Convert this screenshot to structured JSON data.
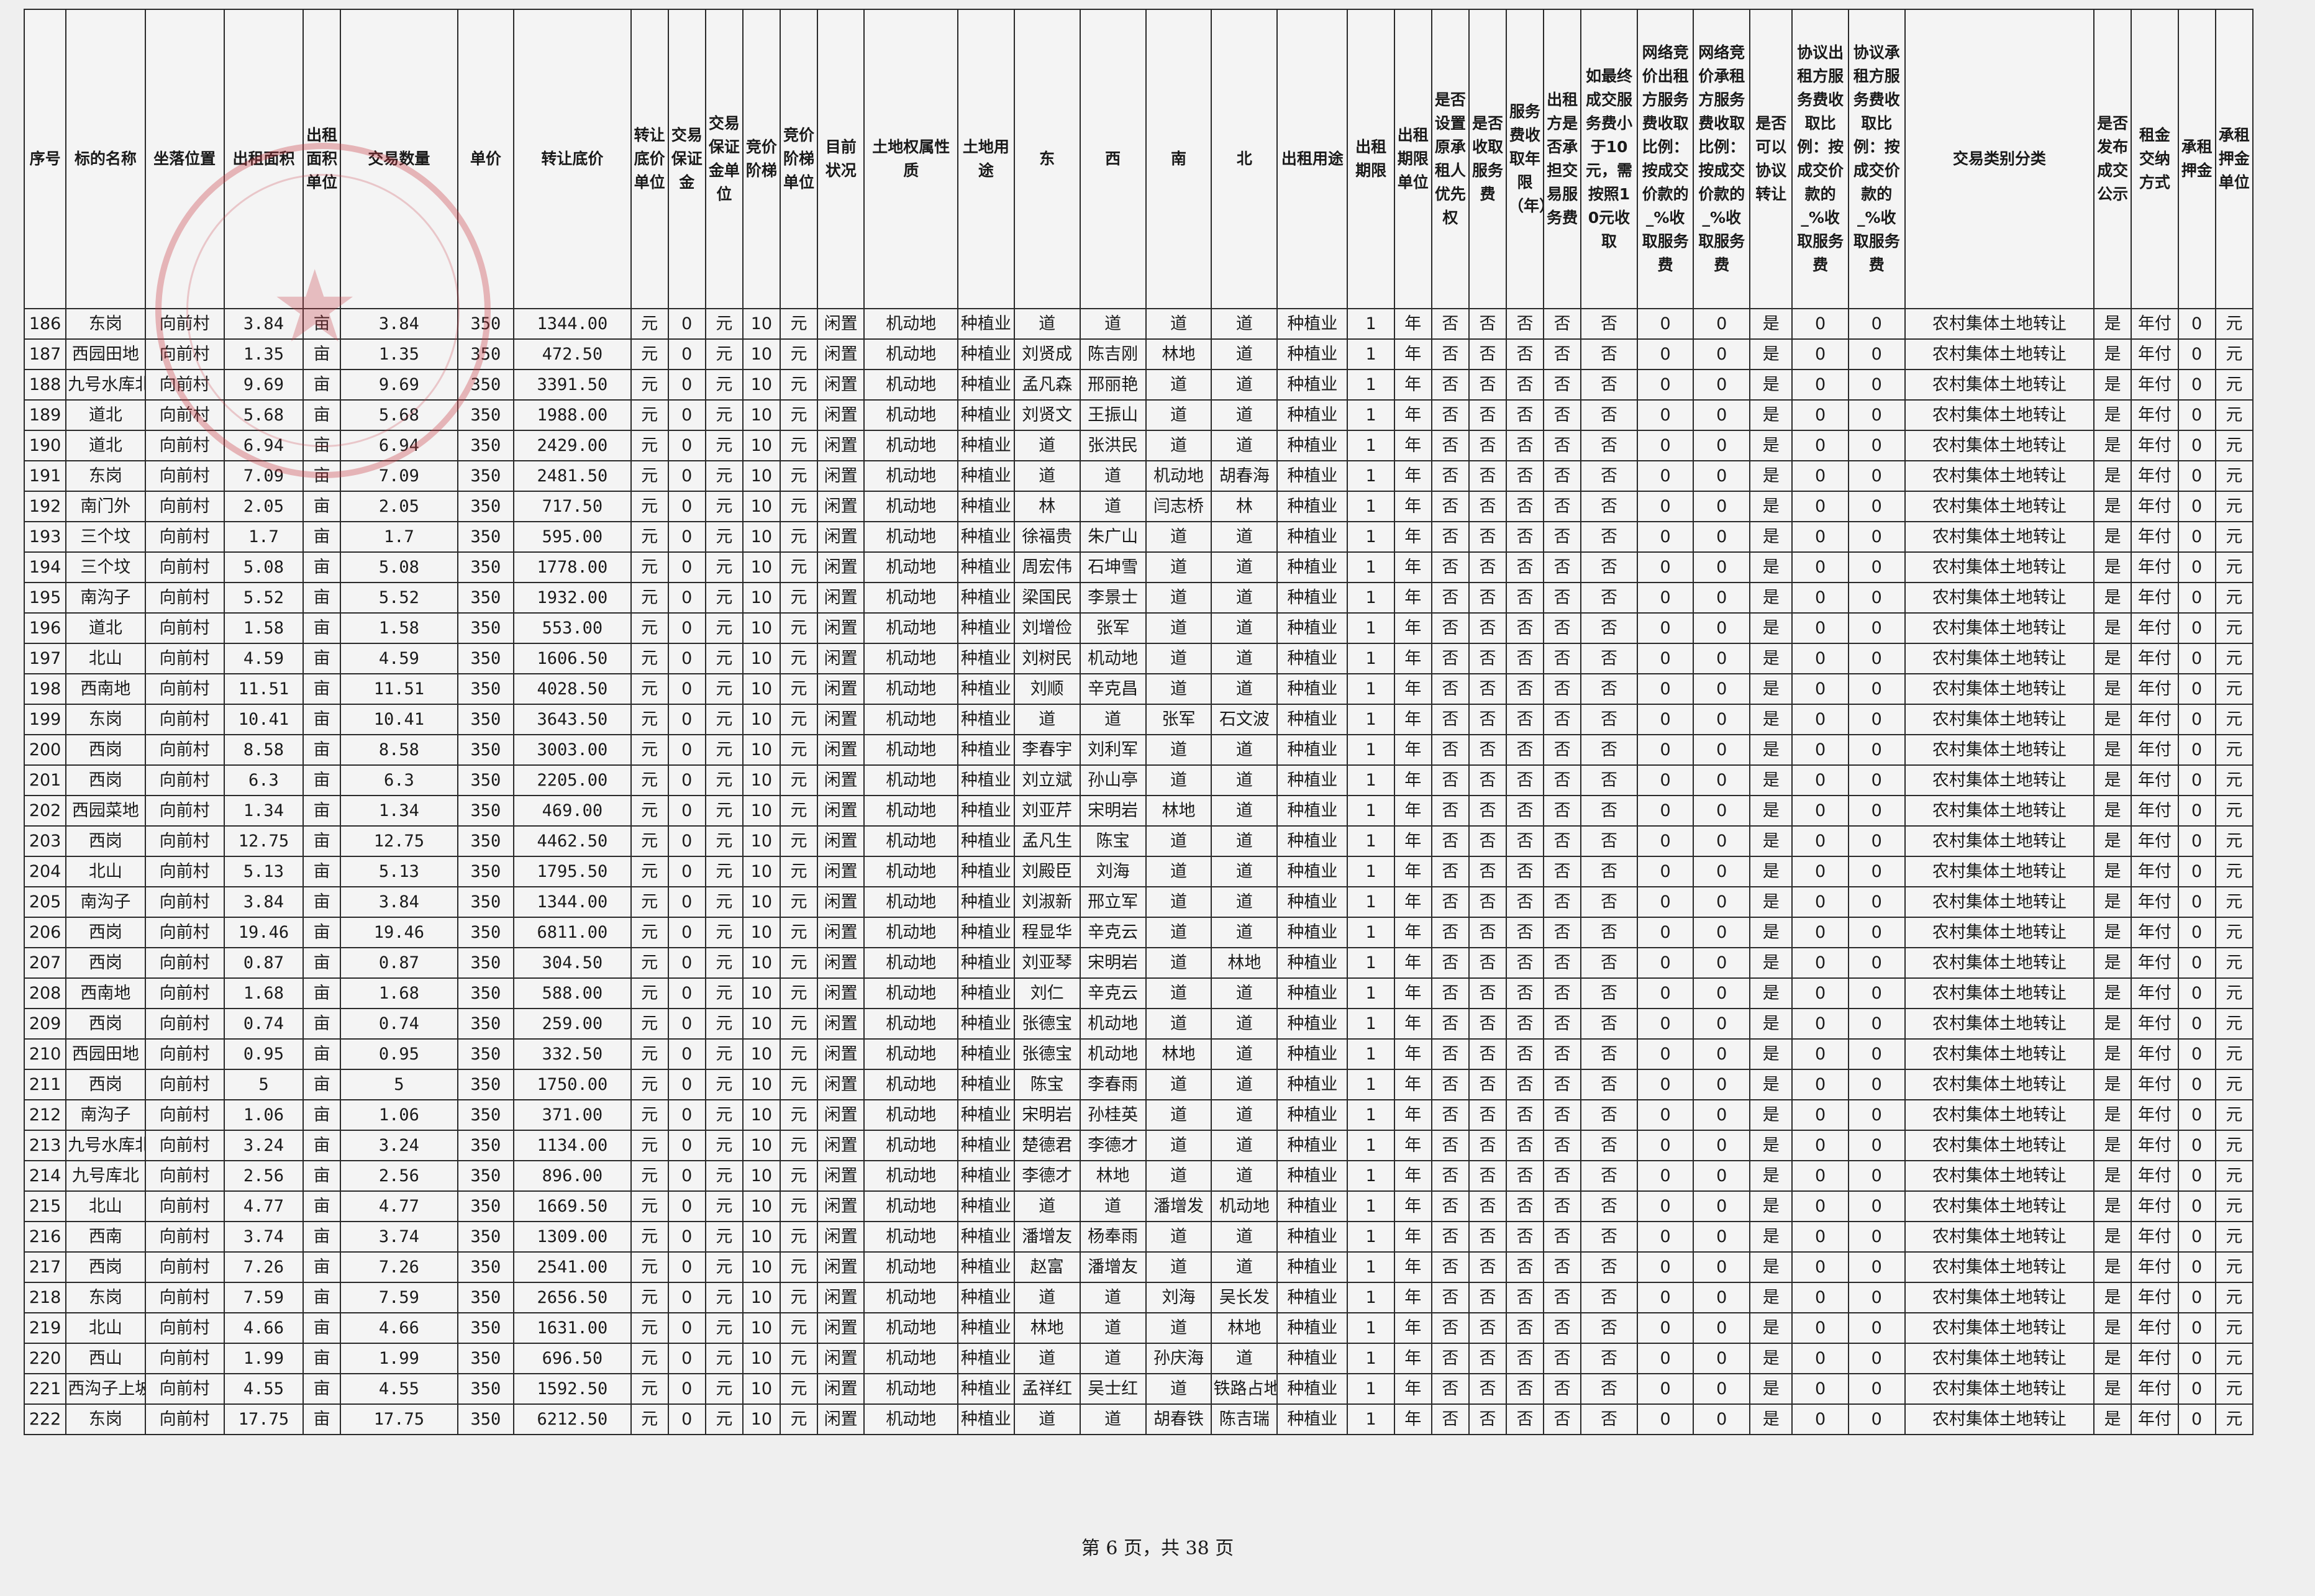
{
  "headers": [
    "序号",
    "标的名称",
    "坐落位置",
    "出租面积",
    "出租面积单位",
    "交易数量",
    "单价",
    "转让底价",
    "转让底价单位",
    "交易保证金",
    "交易保证金单位",
    "竞价阶梯",
    "竞价阶梯单位",
    "目前状况",
    "土地权属性质",
    "土地用途",
    "东",
    "西",
    "南",
    "北",
    "出租用途",
    "出租期限",
    "出租期限单位",
    "是否设置原承租人优先权",
    "是否收取服务费",
    "服务费收取年限（年）",
    "出租方是否承担交易服务费",
    "如最终成交服务费小于10元，需按照10元收取",
    "网络竞价出租方服务费收取比例：按成交价款的_%收取服务费",
    "网络竞价承租方服务费收取比例：按成交价款的_%收取服务费",
    "是否可以协议转让",
    "协议出租方服务费收取比例：按成交价款的_%收取服务费",
    "协议承租方服务费收取比例：按成交价款的_%收取服务费",
    "交易类别分类",
    "是否发布成交公示",
    "租金交纳方式",
    "承租押金",
    "承租押金单位"
  ],
  "rows": [
    [
      "186",
      "东岗",
      "向前村",
      "3.84",
      "亩",
      "3.84",
      "350",
      "1344.00",
      "元",
      "0",
      "元",
      "10",
      "元",
      "闲置",
      "机动地",
      "种植业",
      "道",
      "道",
      "道",
      "道",
      "种植业",
      "1",
      "年",
      "否",
      "否",
      "否",
      "否",
      "否",
      "0",
      "0",
      "是",
      "0",
      "0",
      "农村集体土地转让",
      "是",
      "年付",
      "0",
      "元"
    ],
    [
      "187",
      "西园田地",
      "向前村",
      "1.35",
      "亩",
      "1.35",
      "350",
      "472.50",
      "元",
      "0",
      "元",
      "10",
      "元",
      "闲置",
      "机动地",
      "种植业",
      "刘贤成",
      "陈吉刚",
      "林地",
      "道",
      "种植业",
      "1",
      "年",
      "否",
      "否",
      "否",
      "否",
      "否",
      "0",
      "0",
      "是",
      "0",
      "0",
      "农村集体土地转让",
      "是",
      "年付",
      "0",
      "元"
    ],
    [
      "188",
      "九号水库北",
      "向前村",
      "9.69",
      "亩",
      "9.69",
      "350",
      "3391.50",
      "元",
      "0",
      "元",
      "10",
      "元",
      "闲置",
      "机动地",
      "种植业",
      "孟凡森",
      "邢丽艳",
      "道",
      "道",
      "种植业",
      "1",
      "年",
      "否",
      "否",
      "否",
      "否",
      "否",
      "0",
      "0",
      "是",
      "0",
      "0",
      "农村集体土地转让",
      "是",
      "年付",
      "0",
      "元"
    ],
    [
      "189",
      "道北",
      "向前村",
      "5.68",
      "亩",
      "5.68",
      "350",
      "1988.00",
      "元",
      "0",
      "元",
      "10",
      "元",
      "闲置",
      "机动地",
      "种植业",
      "刘贤文",
      "王振山",
      "道",
      "道",
      "种植业",
      "1",
      "年",
      "否",
      "否",
      "否",
      "否",
      "否",
      "0",
      "0",
      "是",
      "0",
      "0",
      "农村集体土地转让",
      "是",
      "年付",
      "0",
      "元"
    ],
    [
      "190",
      "道北",
      "向前村",
      "6.94",
      "亩",
      "6.94",
      "350",
      "2429.00",
      "元",
      "0",
      "元",
      "10",
      "元",
      "闲置",
      "机动地",
      "种植业",
      "道",
      "张洪民",
      "道",
      "道",
      "种植业",
      "1",
      "年",
      "否",
      "否",
      "否",
      "否",
      "否",
      "0",
      "0",
      "是",
      "0",
      "0",
      "农村集体土地转让",
      "是",
      "年付",
      "0",
      "元"
    ],
    [
      "191",
      "东岗",
      "向前村",
      "7.09",
      "亩",
      "7.09",
      "350",
      "2481.50",
      "元",
      "0",
      "元",
      "10",
      "元",
      "闲置",
      "机动地",
      "种植业",
      "道",
      "道",
      "机动地",
      "胡春海",
      "种植业",
      "1",
      "年",
      "否",
      "否",
      "否",
      "否",
      "否",
      "0",
      "0",
      "是",
      "0",
      "0",
      "农村集体土地转让",
      "是",
      "年付",
      "0",
      "元"
    ],
    [
      "192",
      "南门外",
      "向前村",
      "2.05",
      "亩",
      "2.05",
      "350",
      "717.50",
      "元",
      "0",
      "元",
      "10",
      "元",
      "闲置",
      "机动地",
      "种植业",
      "林",
      "道",
      "闫志桥",
      "林",
      "种植业",
      "1",
      "年",
      "否",
      "否",
      "否",
      "否",
      "否",
      "0",
      "0",
      "是",
      "0",
      "0",
      "农村集体土地转让",
      "是",
      "年付",
      "0",
      "元"
    ],
    [
      "193",
      "三个坟",
      "向前村",
      "1.7",
      "亩",
      "1.7",
      "350",
      "595.00",
      "元",
      "0",
      "元",
      "10",
      "元",
      "闲置",
      "机动地",
      "种植业",
      "徐福贵",
      "朱广山",
      "道",
      "道",
      "种植业",
      "1",
      "年",
      "否",
      "否",
      "否",
      "否",
      "否",
      "0",
      "0",
      "是",
      "0",
      "0",
      "农村集体土地转让",
      "是",
      "年付",
      "0",
      "元"
    ],
    [
      "194",
      "三个坟",
      "向前村",
      "5.08",
      "亩",
      "5.08",
      "350",
      "1778.00",
      "元",
      "0",
      "元",
      "10",
      "元",
      "闲置",
      "机动地",
      "种植业",
      "周宏伟",
      "石坤雪",
      "道",
      "道",
      "种植业",
      "1",
      "年",
      "否",
      "否",
      "否",
      "否",
      "否",
      "0",
      "0",
      "是",
      "0",
      "0",
      "农村集体土地转让",
      "是",
      "年付",
      "0",
      "元"
    ],
    [
      "195",
      "南沟子",
      "向前村",
      "5.52",
      "亩",
      "5.52",
      "350",
      "1932.00",
      "元",
      "0",
      "元",
      "10",
      "元",
      "闲置",
      "机动地",
      "种植业",
      "梁国民",
      "李景士",
      "道",
      "道",
      "种植业",
      "1",
      "年",
      "否",
      "否",
      "否",
      "否",
      "否",
      "0",
      "0",
      "是",
      "0",
      "0",
      "农村集体土地转让",
      "是",
      "年付",
      "0",
      "元"
    ],
    [
      "196",
      "道北",
      "向前村",
      "1.58",
      "亩",
      "1.58",
      "350",
      "553.00",
      "元",
      "0",
      "元",
      "10",
      "元",
      "闲置",
      "机动地",
      "种植业",
      "刘增俭",
      "张军",
      "道",
      "道",
      "种植业",
      "1",
      "年",
      "否",
      "否",
      "否",
      "否",
      "否",
      "0",
      "0",
      "是",
      "0",
      "0",
      "农村集体土地转让",
      "是",
      "年付",
      "0",
      "元"
    ],
    [
      "197",
      "北山",
      "向前村",
      "4.59",
      "亩",
      "4.59",
      "350",
      "1606.50",
      "元",
      "0",
      "元",
      "10",
      "元",
      "闲置",
      "机动地",
      "种植业",
      "刘树民",
      "机动地",
      "道",
      "道",
      "种植业",
      "1",
      "年",
      "否",
      "否",
      "否",
      "否",
      "否",
      "0",
      "0",
      "是",
      "0",
      "0",
      "农村集体土地转让",
      "是",
      "年付",
      "0",
      "元"
    ],
    [
      "198",
      "西南地",
      "向前村",
      "11.51",
      "亩",
      "11.51",
      "350",
      "4028.50",
      "元",
      "0",
      "元",
      "10",
      "元",
      "闲置",
      "机动地",
      "种植业",
      "刘顺",
      "辛克昌",
      "道",
      "道",
      "种植业",
      "1",
      "年",
      "否",
      "否",
      "否",
      "否",
      "否",
      "0",
      "0",
      "是",
      "0",
      "0",
      "农村集体土地转让",
      "是",
      "年付",
      "0",
      "元"
    ],
    [
      "199",
      "东岗",
      "向前村",
      "10.41",
      "亩",
      "10.41",
      "350",
      "3643.50",
      "元",
      "0",
      "元",
      "10",
      "元",
      "闲置",
      "机动地",
      "种植业",
      "道",
      "道",
      "张军",
      "石文波",
      "种植业",
      "1",
      "年",
      "否",
      "否",
      "否",
      "否",
      "否",
      "0",
      "0",
      "是",
      "0",
      "0",
      "农村集体土地转让",
      "是",
      "年付",
      "0",
      "元"
    ],
    [
      "200",
      "西岗",
      "向前村",
      "8.58",
      "亩",
      "8.58",
      "350",
      "3003.00",
      "元",
      "0",
      "元",
      "10",
      "元",
      "闲置",
      "机动地",
      "种植业",
      "李春宇",
      "刘利军",
      "道",
      "道",
      "种植业",
      "1",
      "年",
      "否",
      "否",
      "否",
      "否",
      "否",
      "0",
      "0",
      "是",
      "0",
      "0",
      "农村集体土地转让",
      "是",
      "年付",
      "0",
      "元"
    ],
    [
      "201",
      "西岗",
      "向前村",
      "6.3",
      "亩",
      "6.3",
      "350",
      "2205.00",
      "元",
      "0",
      "元",
      "10",
      "元",
      "闲置",
      "机动地",
      "种植业",
      "刘立斌",
      "孙山亭",
      "道",
      "道",
      "种植业",
      "1",
      "年",
      "否",
      "否",
      "否",
      "否",
      "否",
      "0",
      "0",
      "是",
      "0",
      "0",
      "农村集体土地转让",
      "是",
      "年付",
      "0",
      "元"
    ],
    [
      "202",
      "西园菜地",
      "向前村",
      "1.34",
      "亩",
      "1.34",
      "350",
      "469.00",
      "元",
      "0",
      "元",
      "10",
      "元",
      "闲置",
      "机动地",
      "种植业",
      "刘亚芹",
      "宋明岩",
      "林地",
      "道",
      "种植业",
      "1",
      "年",
      "否",
      "否",
      "否",
      "否",
      "否",
      "0",
      "0",
      "是",
      "0",
      "0",
      "农村集体土地转让",
      "是",
      "年付",
      "0",
      "元"
    ],
    [
      "203",
      "西岗",
      "向前村",
      "12.75",
      "亩",
      "12.75",
      "350",
      "4462.50",
      "元",
      "0",
      "元",
      "10",
      "元",
      "闲置",
      "机动地",
      "种植业",
      "孟凡生",
      "陈宝",
      "道",
      "道",
      "种植业",
      "1",
      "年",
      "否",
      "否",
      "否",
      "否",
      "否",
      "0",
      "0",
      "是",
      "0",
      "0",
      "农村集体土地转让",
      "是",
      "年付",
      "0",
      "元"
    ],
    [
      "204",
      "北山",
      "向前村",
      "5.13",
      "亩",
      "5.13",
      "350",
      "1795.50",
      "元",
      "0",
      "元",
      "10",
      "元",
      "闲置",
      "机动地",
      "种植业",
      "刘殿臣",
      "刘海",
      "道",
      "道",
      "种植业",
      "1",
      "年",
      "否",
      "否",
      "否",
      "否",
      "否",
      "0",
      "0",
      "是",
      "0",
      "0",
      "农村集体土地转让",
      "是",
      "年付",
      "0",
      "元"
    ],
    [
      "205",
      "南沟子",
      "向前村",
      "3.84",
      "亩",
      "3.84",
      "350",
      "1344.00",
      "元",
      "0",
      "元",
      "10",
      "元",
      "闲置",
      "机动地",
      "种植业",
      "刘淑新",
      "邢立军",
      "道",
      "道",
      "种植业",
      "1",
      "年",
      "否",
      "否",
      "否",
      "否",
      "否",
      "0",
      "0",
      "是",
      "0",
      "0",
      "农村集体土地转让",
      "是",
      "年付",
      "0",
      "元"
    ],
    [
      "206",
      "西岗",
      "向前村",
      "19.46",
      "亩",
      "19.46",
      "350",
      "6811.00",
      "元",
      "0",
      "元",
      "10",
      "元",
      "闲置",
      "机动地",
      "种植业",
      "程显华",
      "辛克云",
      "道",
      "道",
      "种植业",
      "1",
      "年",
      "否",
      "否",
      "否",
      "否",
      "否",
      "0",
      "0",
      "是",
      "0",
      "0",
      "农村集体土地转让",
      "是",
      "年付",
      "0",
      "元"
    ],
    [
      "207",
      "西岗",
      "向前村",
      "0.87",
      "亩",
      "0.87",
      "350",
      "304.50",
      "元",
      "0",
      "元",
      "10",
      "元",
      "闲置",
      "机动地",
      "种植业",
      "刘亚琴",
      "宋明岩",
      "道",
      "林地",
      "种植业",
      "1",
      "年",
      "否",
      "否",
      "否",
      "否",
      "否",
      "0",
      "0",
      "是",
      "0",
      "0",
      "农村集体土地转让",
      "是",
      "年付",
      "0",
      "元"
    ],
    [
      "208",
      "西南地",
      "向前村",
      "1.68",
      "亩",
      "1.68",
      "350",
      "588.00",
      "元",
      "0",
      "元",
      "10",
      "元",
      "闲置",
      "机动地",
      "种植业",
      "刘仁",
      "辛克云",
      "道",
      "道",
      "种植业",
      "1",
      "年",
      "否",
      "否",
      "否",
      "否",
      "否",
      "0",
      "0",
      "是",
      "0",
      "0",
      "农村集体土地转让",
      "是",
      "年付",
      "0",
      "元"
    ],
    [
      "209",
      "西岗",
      "向前村",
      "0.74",
      "亩",
      "0.74",
      "350",
      "259.00",
      "元",
      "0",
      "元",
      "10",
      "元",
      "闲置",
      "机动地",
      "种植业",
      "张德宝",
      "机动地",
      "道",
      "道",
      "种植业",
      "1",
      "年",
      "否",
      "否",
      "否",
      "否",
      "否",
      "0",
      "0",
      "是",
      "0",
      "0",
      "农村集体土地转让",
      "是",
      "年付",
      "0",
      "元"
    ],
    [
      "210",
      "西园田地",
      "向前村",
      "0.95",
      "亩",
      "0.95",
      "350",
      "332.50",
      "元",
      "0",
      "元",
      "10",
      "元",
      "闲置",
      "机动地",
      "种植业",
      "张德宝",
      "机动地",
      "林地",
      "道",
      "种植业",
      "1",
      "年",
      "否",
      "否",
      "否",
      "否",
      "否",
      "0",
      "0",
      "是",
      "0",
      "0",
      "农村集体土地转让",
      "是",
      "年付",
      "0",
      "元"
    ],
    [
      "211",
      "西岗",
      "向前村",
      "5",
      "亩",
      "5",
      "350",
      "1750.00",
      "元",
      "0",
      "元",
      "10",
      "元",
      "闲置",
      "机动地",
      "种植业",
      "陈宝",
      "李春雨",
      "道",
      "道",
      "种植业",
      "1",
      "年",
      "否",
      "否",
      "否",
      "否",
      "否",
      "0",
      "0",
      "是",
      "0",
      "0",
      "农村集体土地转让",
      "是",
      "年付",
      "0",
      "元"
    ],
    [
      "212",
      "南沟子",
      "向前村",
      "1.06",
      "亩",
      "1.06",
      "350",
      "371.00",
      "元",
      "0",
      "元",
      "10",
      "元",
      "闲置",
      "机动地",
      "种植业",
      "宋明岩",
      "孙桂英",
      "道",
      "道",
      "种植业",
      "1",
      "年",
      "否",
      "否",
      "否",
      "否",
      "否",
      "0",
      "0",
      "是",
      "0",
      "0",
      "农村集体土地转让",
      "是",
      "年付",
      "0",
      "元"
    ],
    [
      "213",
      "九号水库北",
      "向前村",
      "3.24",
      "亩",
      "3.24",
      "350",
      "1134.00",
      "元",
      "0",
      "元",
      "10",
      "元",
      "闲置",
      "机动地",
      "种植业",
      "楚德君",
      "李德才",
      "道",
      "道",
      "种植业",
      "1",
      "年",
      "否",
      "否",
      "否",
      "否",
      "否",
      "0",
      "0",
      "是",
      "0",
      "0",
      "农村集体土地转让",
      "是",
      "年付",
      "0",
      "元"
    ],
    [
      "214",
      "九号库北",
      "向前村",
      "2.56",
      "亩",
      "2.56",
      "350",
      "896.00",
      "元",
      "0",
      "元",
      "10",
      "元",
      "闲置",
      "机动地",
      "种植业",
      "李德才",
      "林地",
      "道",
      "道",
      "种植业",
      "1",
      "年",
      "否",
      "否",
      "否",
      "否",
      "否",
      "0",
      "0",
      "是",
      "0",
      "0",
      "农村集体土地转让",
      "是",
      "年付",
      "0",
      "元"
    ],
    [
      "215",
      "北山",
      "向前村",
      "4.77",
      "亩",
      "4.77",
      "350",
      "1669.50",
      "元",
      "0",
      "元",
      "10",
      "元",
      "闲置",
      "机动地",
      "种植业",
      "道",
      "道",
      "潘增发",
      "机动地",
      "种植业",
      "1",
      "年",
      "否",
      "否",
      "否",
      "否",
      "否",
      "0",
      "0",
      "是",
      "0",
      "0",
      "农村集体土地转让",
      "是",
      "年付",
      "0",
      "元"
    ],
    [
      "216",
      "西南",
      "向前村",
      "3.74",
      "亩",
      "3.74",
      "350",
      "1309.00",
      "元",
      "0",
      "元",
      "10",
      "元",
      "闲置",
      "机动地",
      "种植业",
      "潘增友",
      "杨奉雨",
      "道",
      "道",
      "种植业",
      "1",
      "年",
      "否",
      "否",
      "否",
      "否",
      "否",
      "0",
      "0",
      "是",
      "0",
      "0",
      "农村集体土地转让",
      "是",
      "年付",
      "0",
      "元"
    ],
    [
      "217",
      "西岗",
      "向前村",
      "7.26",
      "亩",
      "7.26",
      "350",
      "2541.00",
      "元",
      "0",
      "元",
      "10",
      "元",
      "闲置",
      "机动地",
      "种植业",
      "赵富",
      "潘增友",
      "道",
      "道",
      "种植业",
      "1",
      "年",
      "否",
      "否",
      "否",
      "否",
      "否",
      "0",
      "0",
      "是",
      "0",
      "0",
      "农村集体土地转让",
      "是",
      "年付",
      "0",
      "元"
    ],
    [
      "218",
      "东岗",
      "向前村",
      "7.59",
      "亩",
      "7.59",
      "350",
      "2656.50",
      "元",
      "0",
      "元",
      "10",
      "元",
      "闲置",
      "机动地",
      "种植业",
      "道",
      "道",
      "刘海",
      "吴长发",
      "种植业",
      "1",
      "年",
      "否",
      "否",
      "否",
      "否",
      "否",
      "0",
      "0",
      "是",
      "0",
      "0",
      "农村集体土地转让",
      "是",
      "年付",
      "0",
      "元"
    ],
    [
      "219",
      "北山",
      "向前村",
      "4.66",
      "亩",
      "4.66",
      "350",
      "1631.00",
      "元",
      "0",
      "元",
      "10",
      "元",
      "闲置",
      "机动地",
      "种植业",
      "林地",
      "道",
      "道",
      "林地",
      "种植业",
      "1",
      "年",
      "否",
      "否",
      "否",
      "否",
      "否",
      "0",
      "0",
      "是",
      "0",
      "0",
      "农村集体土地转让",
      "是",
      "年付",
      "0",
      "元"
    ],
    [
      "220",
      "西山",
      "向前村",
      "1.99",
      "亩",
      "1.99",
      "350",
      "696.50",
      "元",
      "0",
      "元",
      "10",
      "元",
      "闲置",
      "机动地",
      "种植业",
      "道",
      "道",
      "孙庆海",
      "道",
      "种植业",
      "1",
      "年",
      "否",
      "否",
      "否",
      "否",
      "否",
      "0",
      "0",
      "是",
      "0",
      "0",
      "农村集体土地转让",
      "是",
      "年付",
      "0",
      "元"
    ],
    [
      "221",
      "西沟子上坡",
      "向前村",
      "4.55",
      "亩",
      "4.55",
      "350",
      "1592.50",
      "元",
      "0",
      "元",
      "10",
      "元",
      "闲置",
      "机动地",
      "种植业",
      "孟祥红",
      "吴士红",
      "道",
      "铁路占地",
      "种植业",
      "1",
      "年",
      "否",
      "否",
      "否",
      "否",
      "否",
      "0",
      "0",
      "是",
      "0",
      "0",
      "农村集体土地转让",
      "是",
      "年付",
      "0",
      "元"
    ],
    [
      "222",
      "东岗",
      "向前村",
      "17.75",
      "亩",
      "17.75",
      "350",
      "6212.50",
      "元",
      "0",
      "元",
      "10",
      "元",
      "闲置",
      "机动地",
      "种植业",
      "道",
      "道",
      "胡春铁",
      "陈吉瑞",
      "种植业",
      "1",
      "年",
      "否",
      "否",
      "否",
      "否",
      "否",
      "0",
      "0",
      "是",
      "0",
      "0",
      "农村集体土地转让",
      "是",
      "年付",
      "0",
      "元"
    ]
  ],
  "footer": "第 6 页，共 38 页",
  "colors": {
    "ink": "#1a1a1a",
    "paper": "#f4f4f4",
    "seal": "#c83c46"
  },
  "icons": {
    "seal": "red-official-seal-icon"
  }
}
